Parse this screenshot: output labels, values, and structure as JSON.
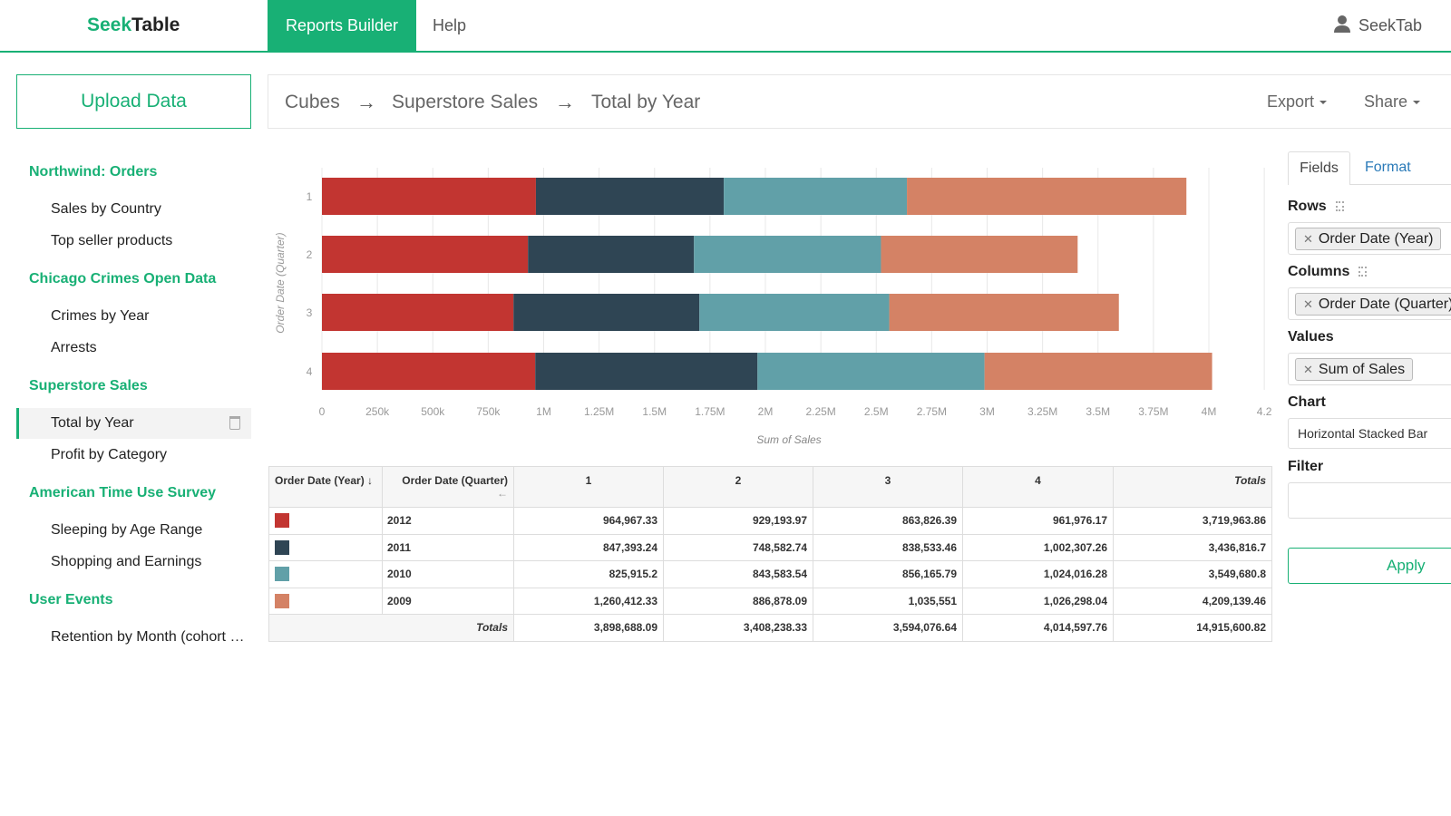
{
  "header": {
    "logo_seek": "Seek",
    "logo_table": "Table",
    "nav": [
      {
        "label": "Reports Builder",
        "active": true
      },
      {
        "label": "Help"
      }
    ],
    "user": "SeekTab",
    "brand_color": "#18b075"
  },
  "upload_label": "Upload Data",
  "breadcrumb": {
    "items": [
      "Cubes",
      "Superstore Sales",
      "Total by Year"
    ],
    "separator": "→",
    "export": "Export",
    "share": "Share"
  },
  "sidebar": {
    "groups": [
      {
        "title": "Northwind: Orders",
        "items": [
          "Sales by Country",
          "Top seller products"
        ]
      },
      {
        "title": "Chicago Crimes Open Data",
        "items": [
          "Crimes by Year",
          "Arrests"
        ]
      },
      {
        "title": "Superstore Sales",
        "items": [
          "Total by Year",
          "Profit by Category"
        ],
        "active": "Total by Year"
      },
      {
        "title": "American Time Use Survey",
        "items": [
          "Sleeping by Age Range",
          "Shopping and Earnings"
        ]
      },
      {
        "title": "User Events",
        "items": [
          "Retention by Month (cohort analysis)"
        ]
      }
    ]
  },
  "chart_data": {
    "type": "bar",
    "orientation": "horizontal",
    "stacked": true,
    "categories": [
      "1",
      "2",
      "3",
      "4"
    ],
    "series": [
      {
        "name": "2012",
        "color": "#c23531",
        "values": [
          964967.33,
          929193.97,
          863826.39,
          961976.17
        ]
      },
      {
        "name": "2011",
        "color": "#2f4554",
        "values": [
          847393.24,
          748582.74,
          838533.46,
          1002307.26
        ]
      },
      {
        "name": "2010",
        "color": "#61a0a8",
        "values": [
          825915.2,
          843583.54,
          856165.79,
          1024016.28
        ]
      },
      {
        "name": "2009",
        "color": "#d48265",
        "values": [
          1260412.33,
          886878.09,
          1035551,
          1026298.04
        ]
      }
    ],
    "xlabel": "Sum of Sales",
    "ylabel": "Order Date (Quarter)",
    "xlim": [
      0,
      4200000
    ],
    "x_ticks": [
      "0",
      "250k",
      "500k",
      "750k",
      "1M",
      "1.25M",
      "1.5M",
      "1.75M",
      "2M",
      "2.25M",
      "2.5M",
      "2.75M",
      "3M",
      "3.25M",
      "3.5M",
      "3.75M",
      "4M",
      "4.2"
    ],
    "grid": true,
    "legend": "none"
  },
  "table": {
    "row_header": "Order Date (Year) ↓",
    "col_header": "Order Date (Quarter)",
    "col_sort": "←",
    "columns": [
      "1",
      "2",
      "3",
      "4",
      "Totals"
    ],
    "rows": [
      {
        "year": "2012",
        "color": "#c23531",
        "values": [
          "964,967.33",
          "929,193.97",
          "863,826.39",
          "961,976.17",
          "3,719,963.86"
        ]
      },
      {
        "year": "2011",
        "color": "#2f4554",
        "values": [
          "847,393.24",
          "748,582.74",
          "838,533.46",
          "1,002,307.26",
          "3,436,816.7"
        ]
      },
      {
        "year": "2010",
        "color": "#61a0a8",
        "values": [
          "825,915.2",
          "843,583.54",
          "856,165.79",
          "1,024,016.28",
          "3,549,680.8"
        ]
      },
      {
        "year": "2009",
        "color": "#d48265",
        "values": [
          "1,260,412.33",
          "886,878.09",
          "1,035,551",
          "1,026,298.04",
          "4,209,139.46"
        ]
      }
    ],
    "totals_label": "Totals",
    "totals": [
      "3,898,688.09",
      "3,408,238.33",
      "3,594,076.64",
      "4,014,597.76",
      "14,915,600.82"
    ]
  },
  "panel": {
    "tabs": [
      "Fields",
      "Format"
    ],
    "rows_label": "Rows",
    "rows_chip": "Order Date (Year)",
    "columns_label": "Columns",
    "columns_chip": "Order Date (Quarter)",
    "values_label": "Values",
    "values_chip": "Sum of Sales",
    "chart_label": "Chart",
    "chart_value": "Horizontal Stacked Bar",
    "filter_label": "Filter",
    "filter_value": "",
    "apply": "Apply"
  }
}
